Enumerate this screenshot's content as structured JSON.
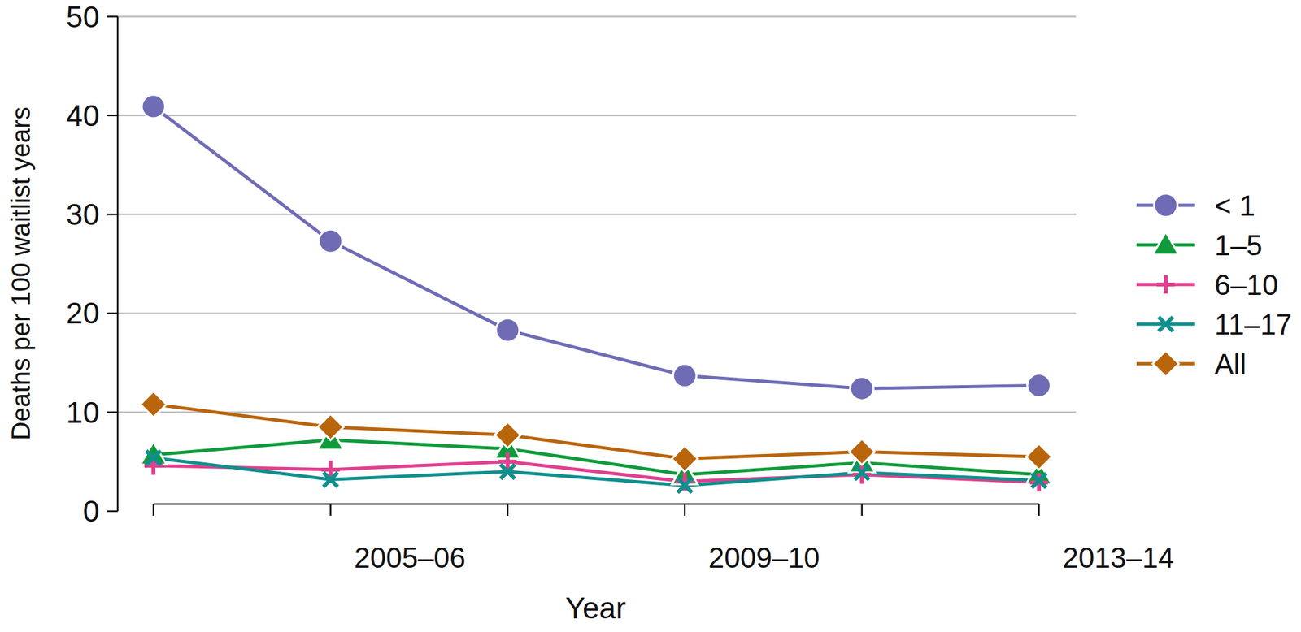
{
  "chart_data": {
    "type": "line",
    "x_label": "Year",
    "y_label": "Deaths per 100 waitlist years",
    "categories": [
      null,
      "2005–06",
      null,
      "2009–10",
      null,
      "2013–14"
    ],
    "ylim": [
      0,
      50
    ],
    "yticks": [
      0,
      10,
      20,
      30,
      40,
      50
    ],
    "grid": true,
    "legend": "right",
    "series": [
      {
        "name": "< 1",
        "color": "#6f6cb5",
        "marker": "circle",
        "values": [
          40.9,
          27.3,
          18.3,
          13.7,
          12.4,
          12.7
        ]
      },
      {
        "name": "1–5",
        "color": "#109a3c",
        "marker": "triangle",
        "values": [
          5.7,
          7.2,
          6.3,
          3.7,
          4.9,
          3.7
        ]
      },
      {
        "name": "6–10",
        "color": "#e0408e",
        "marker": "plus",
        "values": [
          4.6,
          4.2,
          5.0,
          3.0,
          3.7,
          2.9
        ]
      },
      {
        "name": "11–17",
        "color": "#0f8f8d",
        "marker": "x",
        "values": [
          5.4,
          3.2,
          4.0,
          2.6,
          3.9,
          3.1
        ]
      },
      {
        "name": "All",
        "color": "#b8650c",
        "marker": "diamond",
        "values": [
          10.8,
          8.5,
          7.7,
          5.3,
          6.0,
          5.5
        ]
      }
    ]
  }
}
